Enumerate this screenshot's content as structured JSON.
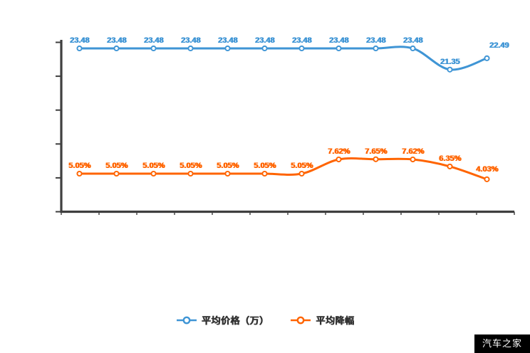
{
  "watermark": "汽车之家",
  "legend": {
    "items": [
      {
        "label": "平均价格（万）",
        "color": "#3f95d5"
      },
      {
        "label": "平均降幅",
        "color": "#ff6400"
      }
    ]
  },
  "chart_data": {
    "type": "line",
    "title": "",
    "xlabel": "",
    "ylabel": "",
    "x_count": 12,
    "x_tick_labels_visible": false,
    "y_axis": {
      "tick_count": 6,
      "labels_visible": false
    },
    "grid": false,
    "legend_position": "bottom",
    "axis_color": "#3f3f3f",
    "smooth": true,
    "series": [
      {
        "name": "平均价格（万）",
        "color": "#3f95d5",
        "unit": "万",
        "values": [
          23.48,
          23.48,
          23.48,
          23.48,
          23.48,
          23.48,
          23.48,
          23.48,
          23.48,
          23.48,
          21.35,
          22.49
        ],
        "labels": [
          "23.48",
          "23.48",
          "23.48",
          "23.48",
          "23.48",
          "23.48",
          "23.48",
          "23.48",
          "23.48",
          "23.48",
          "21.35",
          "22.49"
        ]
      },
      {
        "name": "平均降幅",
        "color": "#ff6400",
        "unit": "%",
        "values": [
          5.05,
          5.05,
          5.05,
          5.05,
          5.05,
          5.05,
          5.05,
          7.62,
          7.65,
          7.62,
          6.35,
          4.03
        ],
        "labels": [
          "5.05%",
          "5.05%",
          "5.05%",
          "5.05%",
          "5.05%",
          "5.05%",
          "5.05%",
          "7.62%",
          "7.65%",
          "7.62%",
          "6.35%",
          "4.03%"
        ]
      }
    ]
  }
}
